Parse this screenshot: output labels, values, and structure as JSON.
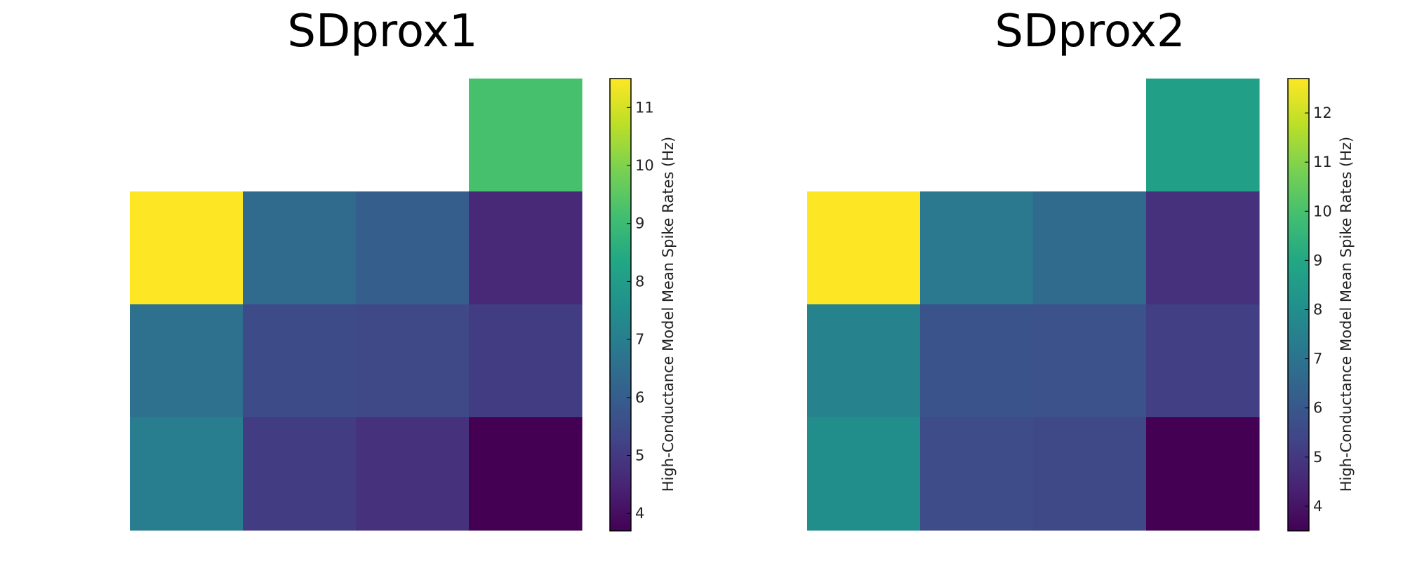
{
  "chart_data": [
    {
      "type": "heatmap",
      "title": "SDprox1",
      "colormap": "viridis",
      "colorbar_label": "High-Conductance Model Mean Spike Rates (Hz)",
      "vmin": 3.7,
      "vmax": 11.5,
      "colorbar_ticks": [
        4,
        5,
        6,
        7,
        8,
        9,
        10,
        11
      ],
      "values": [
        [
          null,
          null,
          null,
          9.2
        ],
        [
          11.5,
          6.4,
          6.0,
          4.6
        ],
        [
          6.6,
          5.5,
          5.4,
          5.1
        ],
        [
          7.0,
          5.1,
          4.8,
          3.7
        ]
      ]
    },
    {
      "type": "heatmap",
      "title": "SDprox2",
      "colormap": "viridis",
      "colorbar_label": "High-Conductance Model Mean Spike Rates (Hz)",
      "vmin": 3.5,
      "vmax": 12.7,
      "colorbar_ticks": [
        4,
        5,
        6,
        7,
        8,
        9,
        10,
        11,
        12
      ],
      "values": [
        [
          null,
          null,
          null,
          8.7
        ],
        [
          12.7,
          7.2,
          6.7,
          4.8
        ],
        [
          7.6,
          5.9,
          5.8,
          5.2
        ],
        [
          8.0,
          5.6,
          5.5,
          3.5
        ]
      ]
    }
  ]
}
